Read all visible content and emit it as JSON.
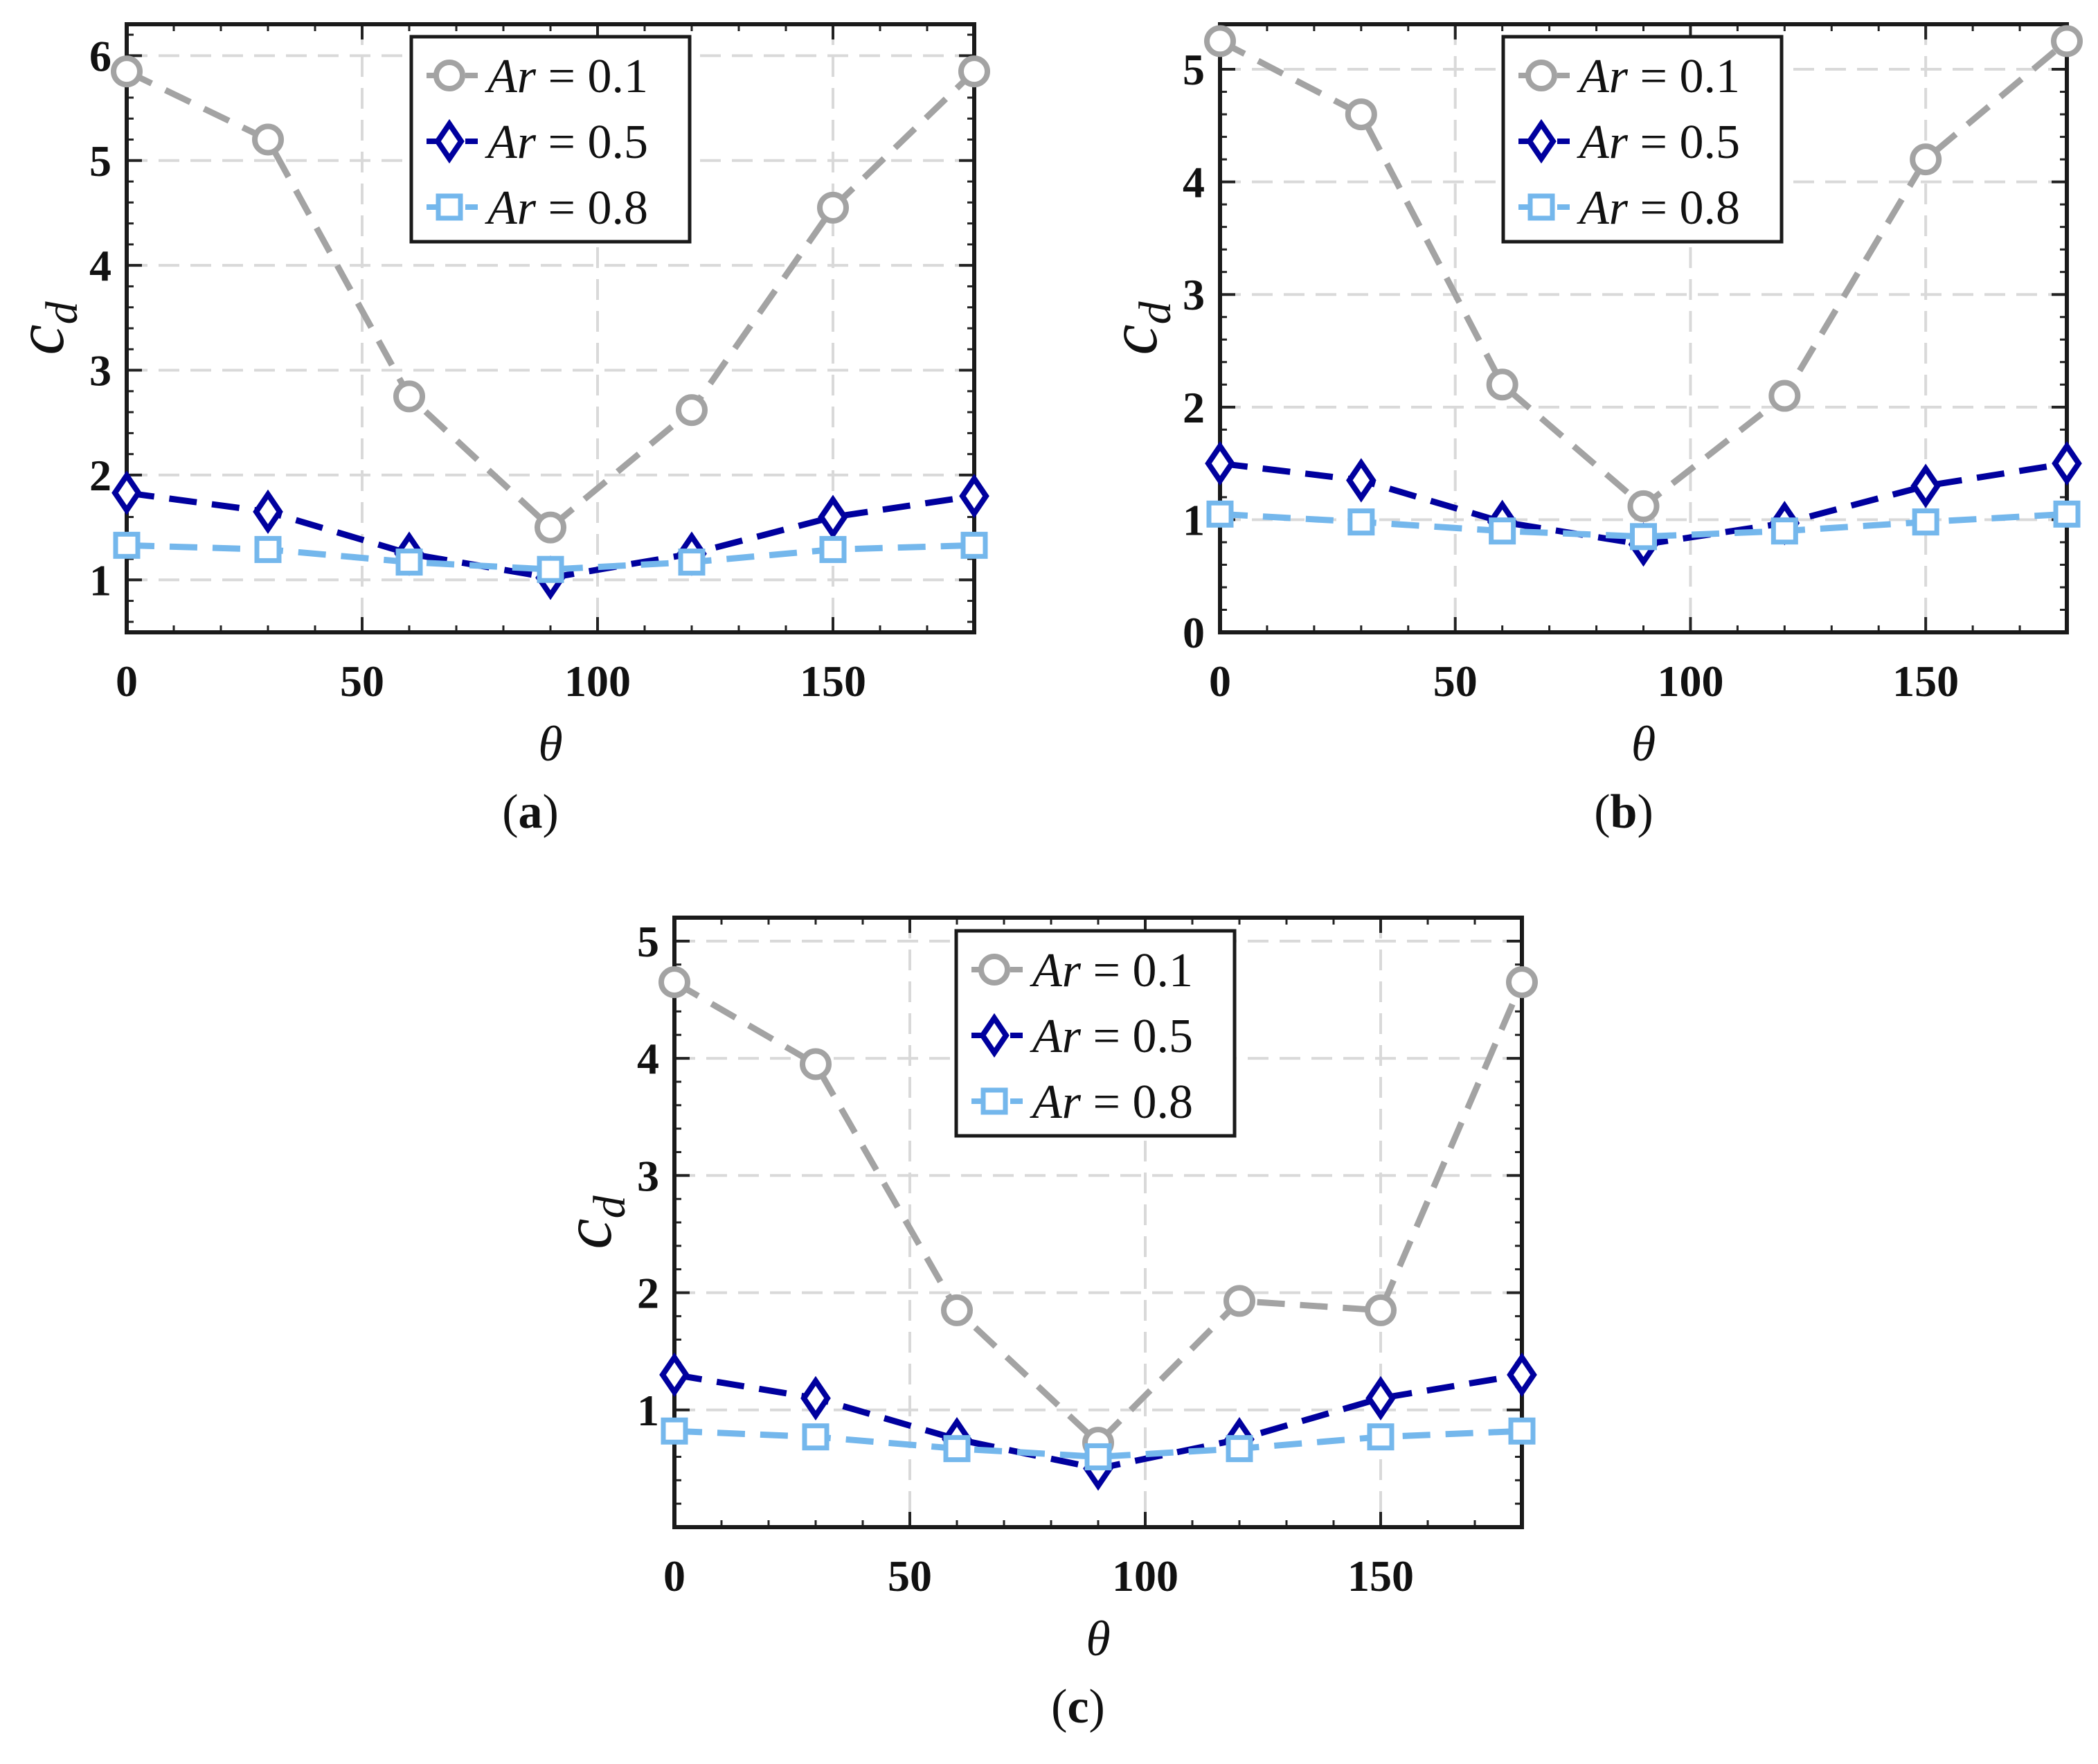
{
  "chart_data": [
    {
      "type": "line",
      "panel_label": "(a)",
      "panel_letter": "a",
      "xlabel": "θ",
      "ylabel": "c",
      "ylabel_subscript": "d",
      "xlim": [
        0,
        180
      ],
      "ylim": [
        0.5,
        6.3
      ],
      "xticks": [
        0,
        50,
        100,
        150
      ],
      "yticks": [
        1,
        2,
        3,
        4,
        5,
        6
      ],
      "grid": true,
      "legend_position": "top-center",
      "x": [
        0,
        30,
        60,
        90,
        120,
        150,
        180
      ],
      "series": [
        {
          "name": "Ar = 0.1",
          "legend_var": "Ar",
          "legend_value": "0.1",
          "marker": "circle",
          "color": "#a3a3a3",
          "values": [
            5.85,
            5.2,
            2.75,
            1.5,
            2.62,
            4.55,
            5.85
          ]
        },
        {
          "name": "Ar = 0.5",
          "legend_var": "Ar",
          "legend_value": "0.5",
          "marker": "diamond",
          "color": "#00009e",
          "values": [
            1.83,
            1.65,
            1.25,
            1.02,
            1.25,
            1.6,
            1.8
          ]
        },
        {
          "name": "Ar = 0.8",
          "legend_var": "Ar",
          "legend_value": "0.8",
          "marker": "square",
          "color": "#74b7ec",
          "values": [
            1.33,
            1.29,
            1.17,
            1.1,
            1.17,
            1.29,
            1.33
          ]
        }
      ]
    },
    {
      "type": "line",
      "panel_label": "(b)",
      "panel_letter": "b",
      "xlabel": "θ",
      "ylabel": "c",
      "ylabel_subscript": "d",
      "xlim": [
        0,
        180
      ],
      "ylim": [
        0,
        5.4
      ],
      "xticks": [
        0,
        50,
        100,
        150
      ],
      "yticks": [
        0,
        1,
        2,
        3,
        4,
        5
      ],
      "grid": true,
      "legend_position": "top-center",
      "x": [
        0,
        30,
        60,
        90,
        120,
        150,
        180
      ],
      "series": [
        {
          "name": "Ar = 0.1",
          "legend_var": "Ar",
          "legend_value": "0.1",
          "marker": "circle",
          "color": "#a3a3a3",
          "values": [
            5.25,
            4.6,
            2.2,
            1.12,
            2.1,
            4.2,
            5.25
          ]
        },
        {
          "name": "Ar = 0.5",
          "legend_var": "Ar",
          "legend_value": "0.5",
          "marker": "diamond",
          "color": "#00009e",
          "values": [
            1.5,
            1.35,
            0.98,
            0.78,
            0.97,
            1.3,
            1.5
          ]
        },
        {
          "name": "Ar = 0.8",
          "legend_var": "Ar",
          "legend_value": "0.8",
          "marker": "square",
          "color": "#74b7ec",
          "values": [
            1.05,
            0.98,
            0.9,
            0.85,
            0.9,
            0.98,
            1.05
          ]
        }
      ]
    },
    {
      "type": "line",
      "panel_label": "(c)",
      "panel_letter": "c",
      "xlabel": "θ",
      "ylabel": "c",
      "ylabel_subscript": "d",
      "xlim": [
        0,
        180
      ],
      "ylim": [
        0,
        5.2
      ],
      "xticks": [
        0,
        50,
        100,
        150
      ],
      "yticks": [
        1,
        2,
        3,
        4,
        5
      ],
      "grid": true,
      "legend_position": "top-center",
      "x": [
        0,
        30,
        60,
        90,
        120,
        150,
        180
      ],
      "series": [
        {
          "name": "Ar = 0.1",
          "legend_var": "Ar",
          "legend_value": "0.1",
          "marker": "circle",
          "color": "#a3a3a3",
          "values": [
            4.65,
            3.95,
            1.85,
            0.72,
            1.93,
            1.85,
            4.65
          ]
        },
        {
          "name": "Ar = 0.5",
          "legend_var": "Ar",
          "legend_value": "0.5",
          "marker": "diamond",
          "color": "#00009e",
          "values": [
            1.3,
            1.1,
            0.75,
            0.5,
            0.75,
            1.1,
            1.3
          ]
        },
        {
          "name": "Ar = 0.8",
          "legend_var": "Ar",
          "legend_value": "0.8",
          "marker": "square",
          "color": "#74b7ec",
          "values": [
            0.82,
            0.77,
            0.67,
            0.6,
            0.67,
            0.77,
            0.82
          ]
        }
      ]
    }
  ]
}
